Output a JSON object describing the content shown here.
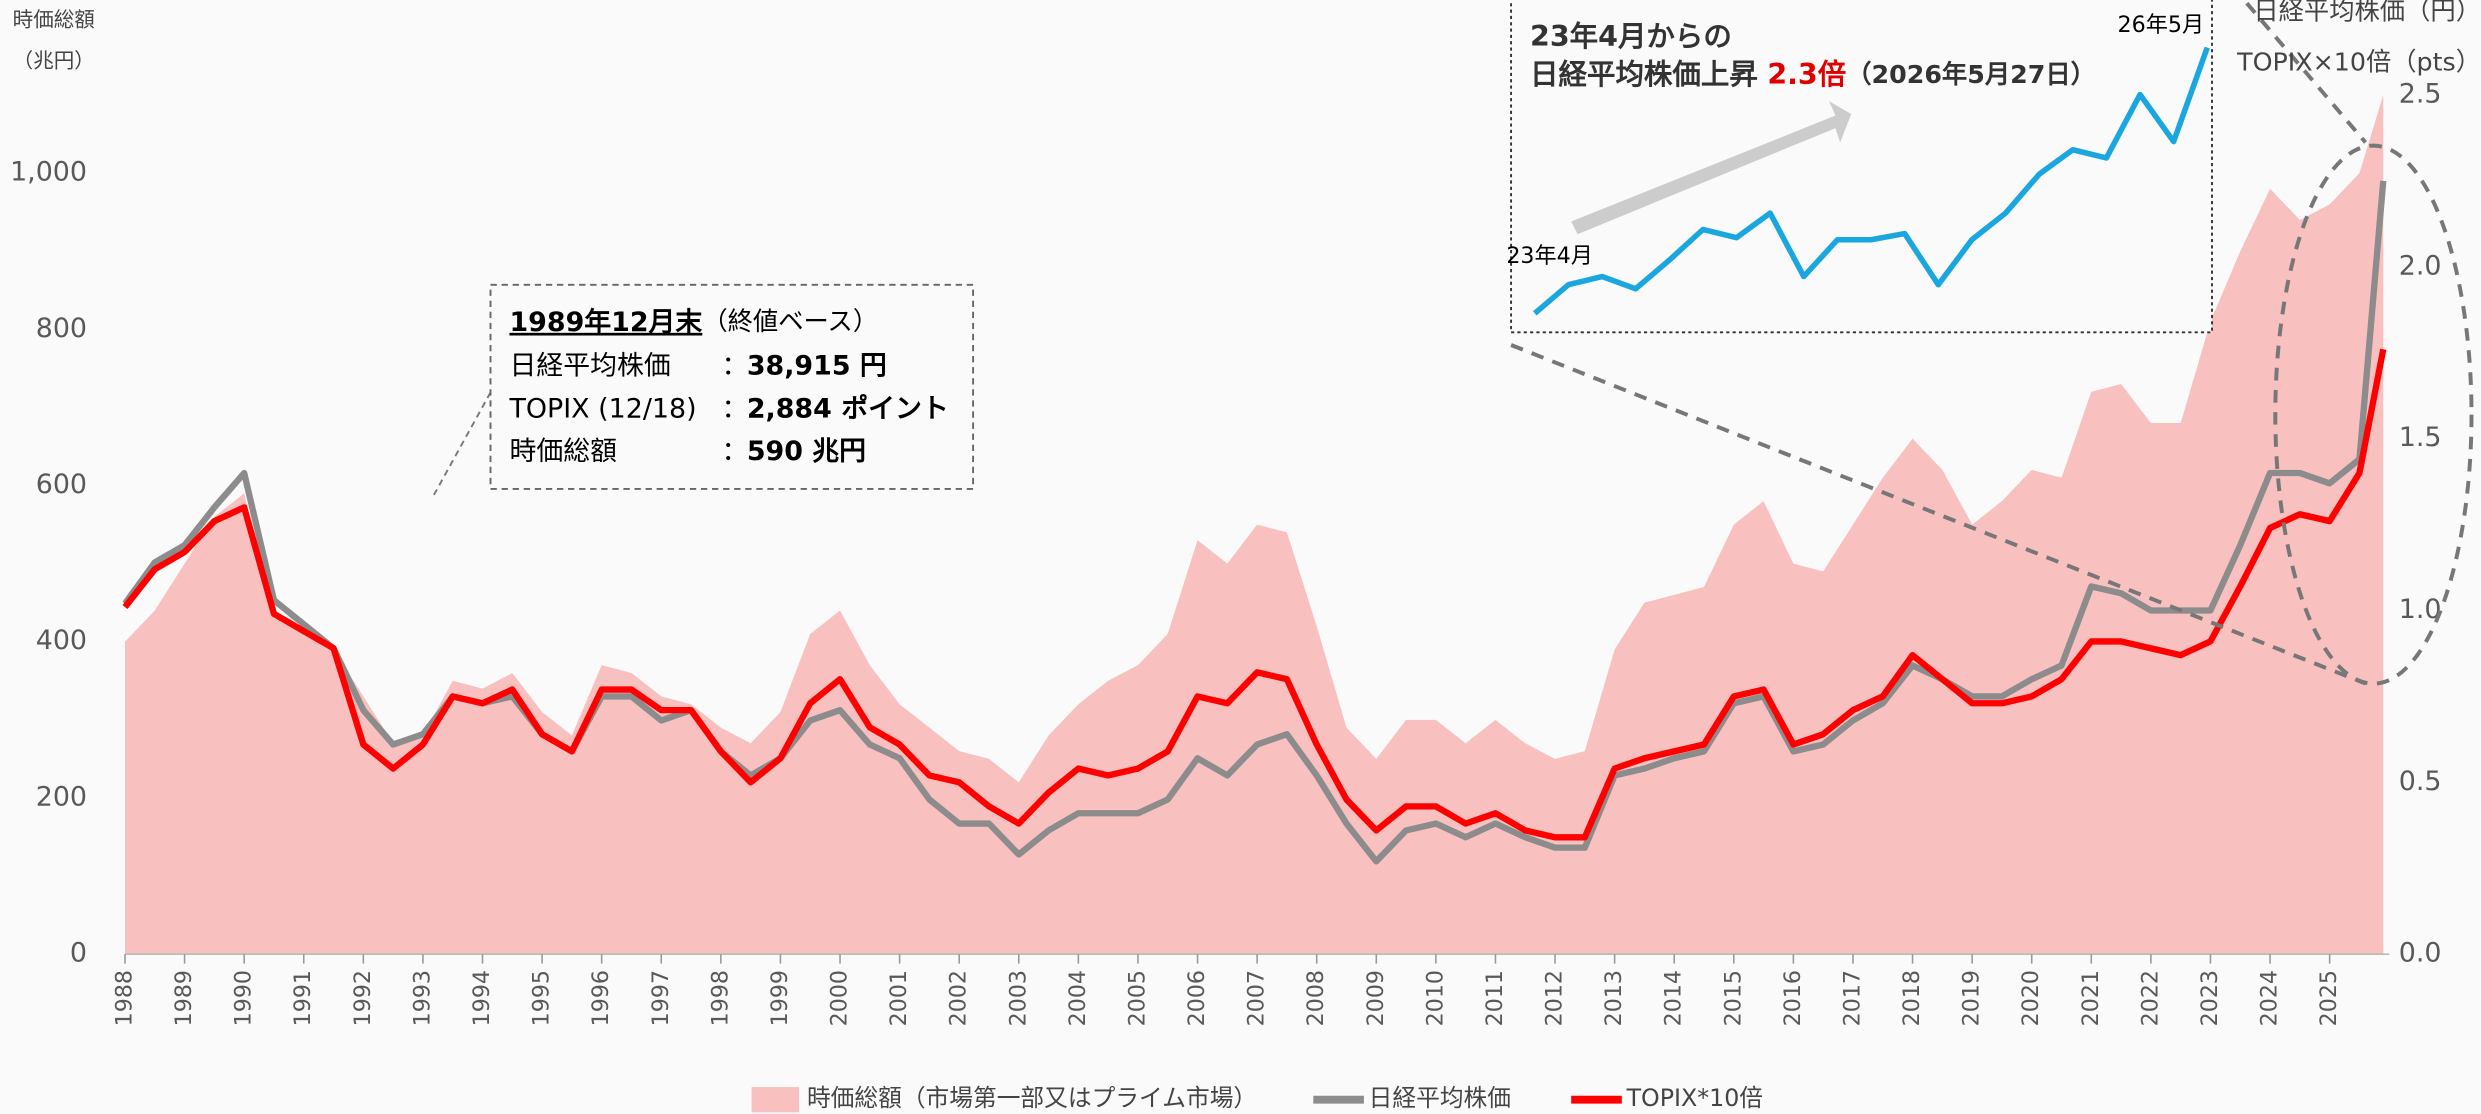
{
  "chart_data": [
    {
      "type": "line",
      "y_label": [
        "時価総額",
        "（兆円）"
      ],
      "y2_label": [
        "日経平均株価（円）",
        "TOPIX×10倍（pts）"
      ],
      "xlim": [
        1988,
        2026
      ],
      "xticks": [
        1988,
        1989,
        1990,
        1991,
        1992,
        1993,
        1994,
        1995,
        1996,
        1997,
        1998,
        1999,
        2000,
        2001,
        2002,
        2003,
        2004,
        2005,
        2006,
        2007,
        2008,
        2009,
        2010,
        2011,
        2012,
        2013,
        2014,
        2015,
        2016,
        2017,
        2018,
        2019,
        2020,
        2021,
        2022,
        2023,
        2024,
        2025
      ],
      "ylim": [
        0,
        1100
      ],
      "yticks": [
        0,
        200,
        400,
        600,
        800,
        {
          "value": 1000,
          "label": "1,000"
        }
      ],
      "y2lim": [
        0,
        2.5
      ],
      "y2ticks": [
        {
          "value": 0,
          "label": "0.0"
        },
        0.5,
        {
          "value": 1,
          "label": "1.0"
        },
        1.5,
        {
          "value": 2,
          "label": "2.0"
        },
        2.5
      ],
      "x": [
        1988,
        1988.5,
        1989,
        1989.5,
        1990,
        1990.5,
        1991,
        1991.5,
        1992,
        1992.5,
        1993,
        1993.5,
        1994,
        1994.5,
        1995,
        1995.5,
        1996,
        1996.5,
        1997,
        1997.5,
        1998,
        1998.5,
        1999,
        1999.5,
        2000,
        2000.5,
        2001,
        2001.5,
        2002,
        2002.5,
        2003,
        2003.5,
        2004,
        2004.5,
        2005,
        2005.5,
        2006,
        2006.5,
        2007,
        2007.5,
        2008,
        2008.5,
        2009,
        2009.5,
        2010,
        2010.5,
        2011,
        2011.5,
        2012,
        2012.5,
        2013,
        2013.5,
        2014,
        2014.5,
        2015,
        2015.5,
        2016,
        2016.5,
        2017,
        2017.5,
        2018,
        2018.5,
        2019,
        2019.5,
        2020,
        2020.5,
        2021,
        2021.5,
        2022,
        2022.5,
        2023,
        2023.5,
        2024,
        2024.5,
        2025,
        2025.5,
        2025.9
      ],
      "series": [
        {
          "name": "時価総額（市場第一部又はプライム市場）",
          "type": "area",
          "color": "#f9c0c0",
          "values": [
            400,
            440,
            500,
            560,
            590,
            430,
            420,
            390,
            330,
            270,
            280,
            350,
            340,
            360,
            310,
            280,
            370,
            360,
            330,
            320,
            290,
            270,
            310,
            410,
            440,
            370,
            320,
            290,
            260,
            250,
            220,
            280,
            320,
            350,
            370,
            410,
            530,
            500,
            550,
            540,
            420,
            290,
            250,
            300,
            300,
            270,
            300,
            270,
            250,
            260,
            390,
            450,
            460,
            470,
            550,
            580,
            500,
            490,
            550,
            610,
            660,
            620,
            550,
            580,
            620,
            610,
            720,
            730,
            680,
            680,
            810,
            900,
            980,
            940,
            960,
            1000,
            1100
          ]
        },
        {
          "name": "日経平均株価",
          "type": "line",
          "axis": "y2",
          "color": "#8c8c8c",
          "values": [
            1.02,
            1.14,
            1.19,
            1.3,
            1.4,
            1.03,
            0.96,
            0.89,
            0.71,
            0.61,
            0.64,
            0.75,
            0.73,
            0.75,
            0.64,
            0.59,
            0.75,
            0.75,
            0.68,
            0.71,
            0.59,
            0.52,
            0.57,
            0.68,
            0.71,
            0.61,
            0.57,
            0.45,
            0.38,
            0.38,
            0.29,
            0.36,
            0.41,
            0.41,
            0.41,
            0.45,
            0.57,
            0.52,
            0.61,
            0.64,
            0.52,
            0.38,
            0.27,
            0.36,
            0.38,
            0.34,
            0.38,
            0.34,
            0.31,
            0.31,
            0.52,
            0.54,
            0.57,
            0.59,
            0.73,
            0.75,
            0.59,
            0.61,
            0.68,
            0.73,
            0.84,
            0.8,
            0.75,
            0.75,
            0.8,
            0.84,
            1.07,
            1.05,
            1.0,
            1.0,
            1.0,
            1.19,
            1.4,
            1.4,
            1.37,
            1.44,
            2.25
          ]
        },
        {
          "name": "TOPIX*10倍",
          "type": "line",
          "axis": "y2",
          "color": "#ff0000",
          "values": [
            1.01,
            1.12,
            1.17,
            1.26,
            1.3,
            0.99,
            0.94,
            0.89,
            0.61,
            0.54,
            0.61,
            0.75,
            0.73,
            0.77,
            0.64,
            0.59,
            0.77,
            0.77,
            0.71,
            0.71,
            0.59,
            0.5,
            0.57,
            0.73,
            0.8,
            0.66,
            0.61,
            0.52,
            0.5,
            0.43,
            0.38,
            0.47,
            0.54,
            0.52,
            0.54,
            0.59,
            0.75,
            0.73,
            0.82,
            0.8,
            0.61,
            0.45,
            0.36,
            0.43,
            0.43,
            0.38,
            0.41,
            0.36,
            0.34,
            0.34,
            0.54,
            0.57,
            0.59,
            0.61,
            0.75,
            0.77,
            0.61,
            0.64,
            0.71,
            0.75,
            0.87,
            0.8,
            0.73,
            0.73,
            0.75,
            0.8,
            0.91,
            0.91,
            0.89,
            0.87,
            0.91,
            1.07,
            1.24,
            1.28,
            1.26,
            1.4,
            1.76
          ]
        }
      ],
      "annotation": {
        "heading": "1989年12月末",
        "heading_note": "（終値ベース）",
        "rows": [
          [
            "日経平均株価",
            "：",
            "38,915 円"
          ],
          [
            "TOPIX (12/18)",
            "：",
            "2,884 ポイント"
          ],
          [
            "時価総額",
            "：",
            "590 兆円"
          ]
        ]
      }
    },
    {
      "type": "line",
      "title_line1": "23年4月からの",
      "title_line2": "日経平均株価上昇",
      "highlight": "2.3倍",
      "title_date": "（2026年5月27日）",
      "start_label": "23年4月",
      "end_label": "26年5月",
      "color": "#1aa7e0",
      "values": [
        1.0,
        1.14,
        1.18,
        1.12,
        1.26,
        1.41,
        1.37,
        1.49,
        1.18,
        1.36,
        1.36,
        1.39,
        1.14,
        1.36,
        1.49,
        1.68,
        1.8,
        1.76,
        2.07,
        1.84,
        2.3
      ]
    }
  ]
}
